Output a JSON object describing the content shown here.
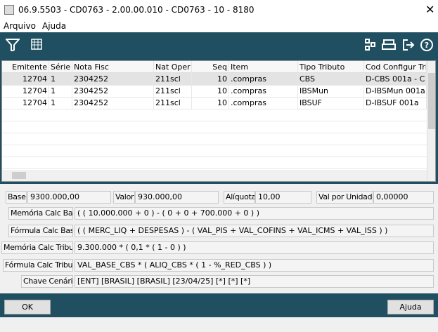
{
  "window": {
    "title": "06.9.5503 - CD0763 - 2.00.00.010 - CD0763 - 10 - 8180"
  },
  "menu": [
    "Arquivo",
    "Ajuda"
  ],
  "table": {
    "columns": [
      "Emitente",
      "Série",
      "Nota Fisc",
      "Nat Oper",
      "Seq",
      "Item",
      "Tipo Tributo",
      "Cod Configur Tribu"
    ],
    "rows": [
      [
        "12704",
        "1",
        "2304252",
        "211scl",
        "10",
        ".compras",
        "CBS",
        "D-CBS 001a - C"
      ],
      [
        "12704",
        "1",
        "2304252",
        "211scl",
        "10",
        ".compras",
        "IBSMun",
        "D-IBSMun 001a"
      ],
      [
        "12704",
        "1",
        "2304252",
        "211scl",
        "10",
        ".compras",
        "IBSUF",
        "D-IBSUF 001a"
      ]
    ]
  },
  "form": {
    "row1": [
      {
        "label": "Base:",
        "value": "9300.000,00"
      },
      {
        "label": "Valor:",
        "value": "930.000,00"
      },
      {
        "label": "Alíquota:",
        "value": "10,00"
      },
      {
        "label": "Val por Unidade:",
        "value": "0,00000"
      }
    ],
    "fields": [
      {
        "label": "Memória Calc Base:",
        "value": "( ( 10.000.000 + 0 ) - ( 0 + 0 + 700.000 + 0 ) )"
      },
      {
        "label": "Fórmula Calc Base:",
        "value": "( ( MERC_LIQ + DESPESAS ) - ( VAL_PIS + VAL_COFINS + VAL_ICMS + VAL_ISS ) )"
      },
      {
        "label": "Memória Calc Tributo:",
        "value": "9.300.000 * ( 0,1 * ( 1 - 0 ) )"
      },
      {
        "label": "Fórmula Calc Tributo:",
        "value": "VAL_BASE_CBS * ( ALIQ_CBS * ( 1 - %_RED_CBS ) )"
      },
      {
        "label": "Chave Cenário:",
        "value": "[ENT] [BRASIL] [BRASIL] [23/04/25] [*] [*] [*]"
      }
    ]
  },
  "buttons": [
    "OK",
    "Ajuda"
  ]
}
